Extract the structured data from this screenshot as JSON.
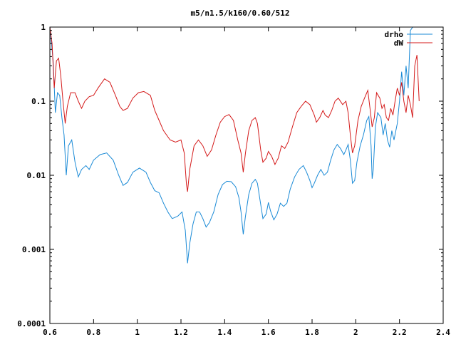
{
  "chart_data": {
    "type": "line",
    "title": "m5/n1.5/k160/0.60/512",
    "xlabel": "",
    "ylabel": "",
    "xlim": [
      0.6,
      2.4
    ],
    "ylim": [
      0.0001,
      1
    ],
    "yscale": "log",
    "grid": false,
    "legend_position": "top-right",
    "x_ticks": [
      {
        "value": 0.6,
        "label": "0.6"
      },
      {
        "value": 0.8,
        "label": "0.8"
      },
      {
        "value": 1.0,
        "label": "1"
      },
      {
        "value": 1.2,
        "label": "1.2"
      },
      {
        "value": 1.4,
        "label": "1.4"
      },
      {
        "value": 1.6,
        "label": "1.6"
      },
      {
        "value": 1.8,
        "label": "1.8"
      },
      {
        "value": 2.0,
        "label": "2"
      },
      {
        "value": 2.2,
        "label": "2.2"
      },
      {
        "value": 2.4,
        "label": "2.4"
      }
    ],
    "y_ticks": [
      {
        "value": 1,
        "label": "1"
      },
      {
        "value": 0.1,
        "label": "0.1"
      },
      {
        "value": 0.01,
        "label": "0.01"
      },
      {
        "value": 0.001,
        "label": "0.001"
      },
      {
        "value": 0.0001,
        "label": "0.0001"
      }
    ],
    "series": [
      {
        "name": "drho",
        "color": "#1a8ad6",
        "points": [
          [
            0.6,
            1.0
          ],
          [
            0.615,
            0.35
          ],
          [
            0.625,
            0.07
          ],
          [
            0.635,
            0.13
          ],
          [
            0.645,
            0.12
          ],
          [
            0.655,
            0.06
          ],
          [
            0.665,
            0.035
          ],
          [
            0.675,
            0.01
          ],
          [
            0.685,
            0.025
          ],
          [
            0.7,
            0.03
          ],
          [
            0.715,
            0.015
          ],
          [
            0.73,
            0.0095
          ],
          [
            0.745,
            0.012
          ],
          [
            0.765,
            0.0135
          ],
          [
            0.78,
            0.012
          ],
          [
            0.8,
            0.016
          ],
          [
            0.83,
            0.019
          ],
          [
            0.86,
            0.02
          ],
          [
            0.89,
            0.016
          ],
          [
            0.915,
            0.01
          ],
          [
            0.935,
            0.0073
          ],
          [
            0.955,
            0.008
          ],
          [
            0.98,
            0.011
          ],
          [
            1.01,
            0.0125
          ],
          [
            1.04,
            0.011
          ],
          [
            1.06,
            0.008
          ],
          [
            1.08,
            0.0062
          ],
          [
            1.1,
            0.0058
          ],
          [
            1.12,
            0.0042
          ],
          [
            1.14,
            0.0032
          ],
          [
            1.16,
            0.0026
          ],
          [
            1.185,
            0.0028
          ],
          [
            1.205,
            0.0032
          ],
          [
            1.22,
            0.0018
          ],
          [
            1.23,
            0.00065
          ],
          [
            1.24,
            0.0012
          ],
          [
            1.255,
            0.0022
          ],
          [
            1.27,
            0.0032
          ],
          [
            1.285,
            0.0032
          ],
          [
            1.3,
            0.0026
          ],
          [
            1.315,
            0.002
          ],
          [
            1.33,
            0.0023
          ],
          [
            1.35,
            0.0032
          ],
          [
            1.37,
            0.0055
          ],
          [
            1.39,
            0.0075
          ],
          [
            1.41,
            0.0083
          ],
          [
            1.43,
            0.0082
          ],
          [
            1.45,
            0.007
          ],
          [
            1.465,
            0.005
          ],
          [
            1.475,
            0.0032
          ],
          [
            1.485,
            0.0016
          ],
          [
            1.495,
            0.0028
          ],
          [
            1.51,
            0.0055
          ],
          [
            1.525,
            0.0078
          ],
          [
            1.54,
            0.0088
          ],
          [
            1.55,
            0.0078
          ],
          [
            1.56,
            0.005
          ],
          [
            1.575,
            0.0026
          ],
          [
            1.59,
            0.003
          ],
          [
            1.6,
            0.0043
          ],
          [
            1.61,
            0.0033
          ],
          [
            1.625,
            0.0025
          ],
          [
            1.64,
            0.003
          ],
          [
            1.655,
            0.0042
          ],
          [
            1.67,
            0.0038
          ],
          [
            1.685,
            0.0042
          ],
          [
            1.7,
            0.0065
          ],
          [
            1.72,
            0.0095
          ],
          [
            1.74,
            0.012
          ],
          [
            1.76,
            0.0135
          ],
          [
            1.775,
            0.011
          ],
          [
            1.79,
            0.0085
          ],
          [
            1.8,
            0.0068
          ],
          [
            1.81,
            0.0078
          ],
          [
            1.825,
            0.01
          ],
          [
            1.84,
            0.012
          ],
          [
            1.855,
            0.01
          ],
          [
            1.87,
            0.011
          ],
          [
            1.885,
            0.016
          ],
          [
            1.9,
            0.022
          ],
          [
            1.915,
            0.026
          ],
          [
            1.93,
            0.023
          ],
          [
            1.945,
            0.019
          ],
          [
            1.955,
            0.022
          ],
          [
            1.965,
            0.026
          ],
          [
            1.975,
            0.016
          ],
          [
            1.985,
            0.0078
          ],
          [
            1.995,
            0.0085
          ],
          [
            2.005,
            0.015
          ],
          [
            2.02,
            0.025
          ],
          [
            2.035,
            0.035
          ],
          [
            2.05,
            0.055
          ],
          [
            2.06,
            0.062
          ],
          [
            2.07,
            0.025
          ],
          [
            2.075,
            0.009
          ],
          [
            2.08,
            0.012
          ],
          [
            2.09,
            0.045
          ],
          [
            2.1,
            0.07
          ],
          [
            2.115,
            0.06
          ],
          [
            2.125,
            0.035
          ],
          [
            2.135,
            0.05
          ],
          [
            2.145,
            0.03
          ],
          [
            2.155,
            0.024
          ],
          [
            2.165,
            0.04
          ],
          [
            2.175,
            0.03
          ],
          [
            2.19,
            0.05
          ],
          [
            2.2,
            0.1
          ],
          [
            2.21,
            0.25
          ],
          [
            2.22,
            0.12
          ],
          [
            2.23,
            0.3
          ],
          [
            2.24,
            0.15
          ],
          [
            2.25,
            0.9
          ],
          [
            2.26,
            1.0
          ]
        ]
      },
      {
        "name": "dW",
        "color": "#d41a1a",
        "points": [
          [
            0.6,
            1.0
          ],
          [
            0.61,
            0.6
          ],
          [
            0.62,
            0.15
          ],
          [
            0.63,
            0.35
          ],
          [
            0.64,
            0.38
          ],
          [
            0.65,
            0.22
          ],
          [
            0.66,
            0.1
          ],
          [
            0.67,
            0.05
          ],
          [
            0.68,
            0.085
          ],
          [
            0.695,
            0.13
          ],
          [
            0.715,
            0.13
          ],
          [
            0.73,
            0.1
          ],
          [
            0.745,
            0.08
          ],
          [
            0.76,
            0.1
          ],
          [
            0.78,
            0.115
          ],
          [
            0.8,
            0.12
          ],
          [
            0.82,
            0.15
          ],
          [
            0.85,
            0.2
          ],
          [
            0.875,
            0.18
          ],
          [
            0.9,
            0.12
          ],
          [
            0.92,
            0.085
          ],
          [
            0.935,
            0.075
          ],
          [
            0.955,
            0.08
          ],
          [
            0.98,
            0.11
          ],
          [
            1.005,
            0.13
          ],
          [
            1.03,
            0.135
          ],
          [
            1.06,
            0.12
          ],
          [
            1.08,
            0.075
          ],
          [
            1.1,
            0.055
          ],
          [
            1.12,
            0.04
          ],
          [
            1.15,
            0.03
          ],
          [
            1.175,
            0.028
          ],
          [
            1.2,
            0.03
          ],
          [
            1.215,
            0.02
          ],
          [
            1.225,
            0.0075
          ],
          [
            1.23,
            0.006
          ],
          [
            1.24,
            0.012
          ],
          [
            1.26,
            0.025
          ],
          [
            1.28,
            0.03
          ],
          [
            1.3,
            0.025
          ],
          [
            1.32,
            0.018
          ],
          [
            1.34,
            0.022
          ],
          [
            1.36,
            0.035
          ],
          [
            1.38,
            0.052
          ],
          [
            1.4,
            0.062
          ],
          [
            1.42,
            0.066
          ],
          [
            1.44,
            0.055
          ],
          [
            1.46,
            0.03
          ],
          [
            1.475,
            0.02
          ],
          [
            1.485,
            0.011
          ],
          [
            1.495,
            0.02
          ],
          [
            1.51,
            0.04
          ],
          [
            1.525,
            0.055
          ],
          [
            1.54,
            0.06
          ],
          [
            1.55,
            0.05
          ],
          [
            1.565,
            0.022
          ],
          [
            1.575,
            0.015
          ],
          [
            1.59,
            0.017
          ],
          [
            1.6,
            0.021
          ],
          [
            1.615,
            0.018
          ],
          [
            1.63,
            0.014
          ],
          [
            1.645,
            0.017
          ],
          [
            1.66,
            0.025
          ],
          [
            1.675,
            0.023
          ],
          [
            1.69,
            0.028
          ],
          [
            1.71,
            0.045
          ],
          [
            1.73,
            0.07
          ],
          [
            1.75,
            0.085
          ],
          [
            1.77,
            0.1
          ],
          [
            1.79,
            0.09
          ],
          [
            1.81,
            0.065
          ],
          [
            1.82,
            0.052
          ],
          [
            1.835,
            0.06
          ],
          [
            1.85,
            0.075
          ],
          [
            1.86,
            0.065
          ],
          [
            1.875,
            0.06
          ],
          [
            1.89,
            0.075
          ],
          [
            1.905,
            0.1
          ],
          [
            1.92,
            0.11
          ],
          [
            1.94,
            0.09
          ],
          [
            1.955,
            0.1
          ],
          [
            1.965,
            0.07
          ],
          [
            1.975,
            0.035
          ],
          [
            1.985,
            0.02
          ],
          [
            1.995,
            0.025
          ],
          [
            2.01,
            0.055
          ],
          [
            2.025,
            0.085
          ],
          [
            2.04,
            0.11
          ],
          [
            2.055,
            0.14
          ],
          [
            2.065,
            0.08
          ],
          [
            2.075,
            0.045
          ],
          [
            2.085,
            0.06
          ],
          [
            2.095,
            0.13
          ],
          [
            2.11,
            0.11
          ],
          [
            2.12,
            0.08
          ],
          [
            2.13,
            0.09
          ],
          [
            2.14,
            0.06
          ],
          [
            2.15,
            0.055
          ],
          [
            2.16,
            0.08
          ],
          [
            2.17,
            0.065
          ],
          [
            2.18,
            0.1
          ],
          [
            2.19,
            0.15
          ],
          [
            2.2,
            0.12
          ],
          [
            2.21,
            0.18
          ],
          [
            2.22,
            0.1
          ],
          [
            2.23,
            0.07
          ],
          [
            2.24,
            0.12
          ],
          [
            2.25,
            0.09
          ],
          [
            2.26,
            0.06
          ],
          [
            2.27,
            0.3
          ],
          [
            2.28,
            0.42
          ],
          [
            2.29,
            0.1
          ]
        ]
      }
    ]
  }
}
